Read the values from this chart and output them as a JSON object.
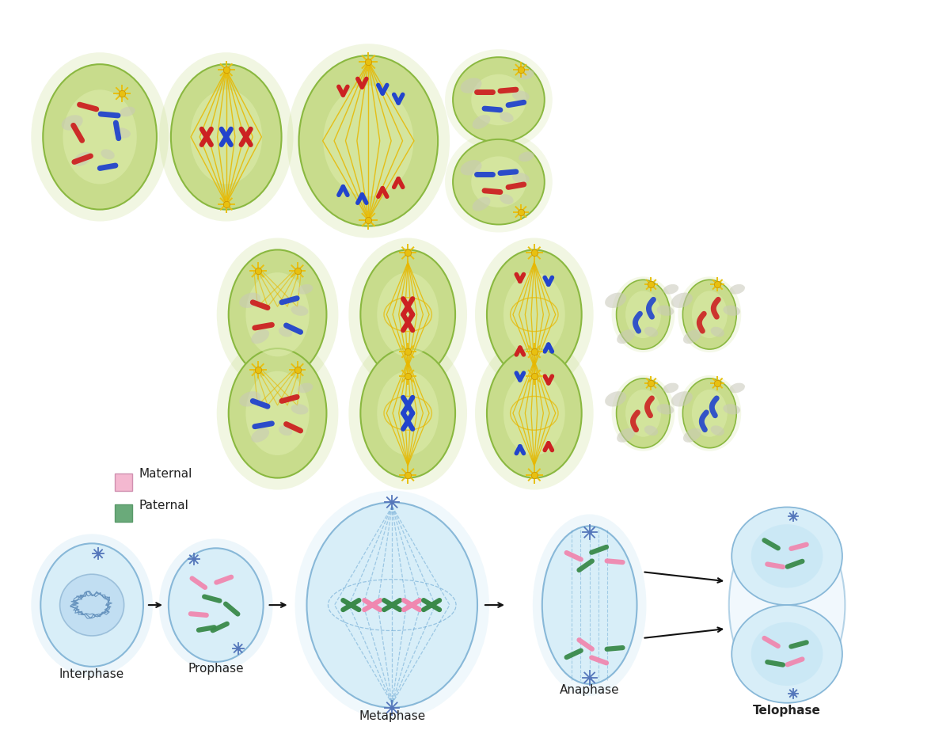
{
  "bg_color": "#ffffff",
  "cell_green_face": "#c8dc8c",
  "cell_green_edge": "#8ab840",
  "cell_green_light": "#e0eeb0",
  "cell_blue_face": "#b8ddf0",
  "cell_blue_edge": "#88b8d8",
  "cell_blue_inner": "#d8eef8",
  "cell_blue_light": "#e8f4fc",
  "chr_red": "#cc2222",
  "chr_blue": "#2244cc",
  "chr_pink": "#f088b0",
  "chr_dgreen": "#3a8a4a",
  "spindle_color": "#e8b800",
  "spindle_alpha": 0.85,
  "arrow_color": "#111111",
  "legend_maternal": "#f4b8d0",
  "legend_paternal": "#6aaa7a",
  "text_color": "#222222",
  "label_fontsize": 11,
  "bottom_labels": [
    "Interphase",
    "Prophase",
    "Metaphase",
    "Anaphase",
    "Telophase"
  ]
}
